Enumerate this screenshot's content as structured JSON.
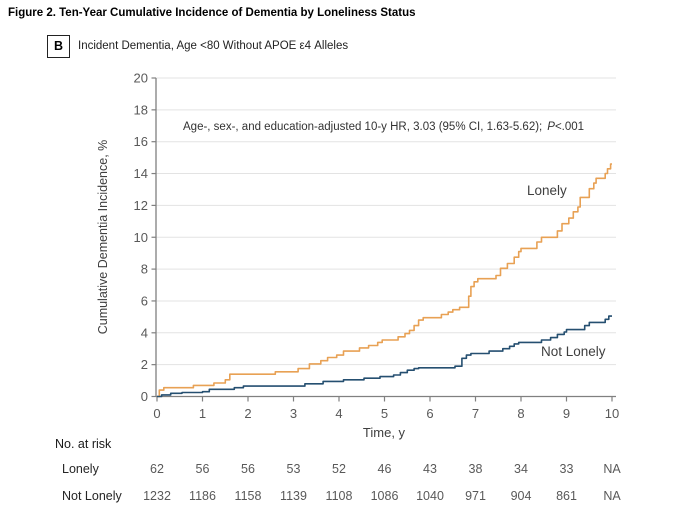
{
  "figure": {
    "title": "Figure 2. Ten-Year Cumulative Incidence of Dementia by Loneliness Status",
    "panel": {
      "letter": "B",
      "label": "Incident Dementia, Age <80 Without APOE ε4 Alleles"
    }
  },
  "chart_data": {
    "type": "line",
    "subtype": "step-cumulative-incidence",
    "xlabel": "Time, y",
    "ylabel": "Cumulative Dementia Incidence, %",
    "xlim": [
      0,
      10
    ],
    "ylim": [
      0,
      20
    ],
    "x_ticks": [
      0,
      1,
      2,
      3,
      4,
      5,
      6,
      7,
      8,
      9,
      10
    ],
    "y_ticks": [
      0,
      2,
      4,
      6,
      8,
      10,
      12,
      14,
      16,
      18,
      20
    ],
    "grid": "horizontal",
    "legend_position": "inline-labels",
    "annotation": {
      "prefix": "Age-, sex-, and education-adjusted 10-y HR, 3.03 (95% CI, 1.63-5.62);",
      "p_symbol": "P",
      "p_value": "<.001"
    },
    "series": [
      {
        "name": "Lonely",
        "color": "#E8A154",
        "points": [
          [
            0,
            0
          ],
          [
            0.05,
            0.4
          ],
          [
            0.15,
            0.55
          ],
          [
            0.8,
            0.7
          ],
          [
            1.25,
            0.85
          ],
          [
            1.5,
            1.05
          ],
          [
            1.6,
            1.4
          ],
          [
            2.6,
            1.55
          ],
          [
            3.1,
            1.75
          ],
          [
            3.35,
            2.05
          ],
          [
            3.6,
            2.25
          ],
          [
            3.75,
            2.45
          ],
          [
            3.95,
            2.6
          ],
          [
            4.1,
            2.85
          ],
          [
            4.45,
            3.05
          ],
          [
            4.65,
            3.2
          ],
          [
            4.85,
            3.4
          ],
          [
            4.95,
            3.55
          ],
          [
            5.3,
            3.75
          ],
          [
            5.45,
            3.95
          ],
          [
            5.55,
            4.15
          ],
          [
            5.65,
            4.45
          ],
          [
            5.75,
            4.8
          ],
          [
            5.85,
            4.95
          ],
          [
            6.25,
            5.15
          ],
          [
            6.4,
            5.3
          ],
          [
            6.5,
            5.45
          ],
          [
            6.65,
            5.6
          ],
          [
            6.85,
            6.3
          ],
          [
            6.9,
            6.9
          ],
          [
            6.97,
            7.2
          ],
          [
            7.05,
            7.4
          ],
          [
            7.45,
            7.6
          ],
          [
            7.55,
            8.05
          ],
          [
            7.7,
            8.35
          ],
          [
            7.85,
            8.75
          ],
          [
            7.95,
            9.1
          ],
          [
            8.0,
            9.3
          ],
          [
            8.35,
            9.7
          ],
          [
            8.45,
            10.0
          ],
          [
            8.8,
            10.4
          ],
          [
            8.9,
            10.85
          ],
          [
            9.05,
            11.2
          ],
          [
            9.15,
            11.6
          ],
          [
            9.25,
            11.9
          ],
          [
            9.3,
            12.5
          ],
          [
            9.5,
            13.05
          ],
          [
            9.6,
            13.4
          ],
          [
            9.65,
            13.7
          ],
          [
            9.85,
            14.0
          ],
          [
            9.9,
            14.3
          ],
          [
            9.97,
            14.6
          ]
        ]
      },
      {
        "name": "Not Lonely",
        "color": "#254F70",
        "points": [
          [
            0,
            0
          ],
          [
            0.1,
            0.1
          ],
          [
            0.3,
            0.2
          ],
          [
            0.55,
            0.25
          ],
          [
            1.0,
            0.3
          ],
          [
            1.15,
            0.45
          ],
          [
            1.7,
            0.55
          ],
          [
            1.9,
            0.65
          ],
          [
            3.25,
            0.8
          ],
          [
            3.65,
            0.95
          ],
          [
            4.1,
            1.05
          ],
          [
            4.55,
            1.15
          ],
          [
            4.9,
            1.25
          ],
          [
            5.2,
            1.35
          ],
          [
            5.35,
            1.5
          ],
          [
            5.5,
            1.65
          ],
          [
            5.65,
            1.75
          ],
          [
            5.75,
            1.8
          ],
          [
            6.55,
            1.9
          ],
          [
            6.7,
            2.4
          ],
          [
            6.8,
            2.6
          ],
          [
            6.9,
            2.7
          ],
          [
            7.3,
            2.85
          ],
          [
            7.6,
            3.0
          ],
          [
            7.75,
            3.15
          ],
          [
            7.85,
            3.3
          ],
          [
            7.95,
            3.4
          ],
          [
            8.45,
            3.55
          ],
          [
            8.65,
            3.7
          ],
          [
            8.8,
            3.9
          ],
          [
            8.95,
            4.05
          ],
          [
            9.0,
            4.2
          ],
          [
            9.4,
            4.45
          ],
          [
            9.5,
            4.65
          ],
          [
            9.85,
            4.85
          ],
          [
            9.93,
            5.05
          ]
        ]
      }
    ],
    "risk_table": {
      "header": "No. at risk",
      "times": [
        0,
        1,
        2,
        3,
        4,
        5,
        6,
        7,
        8,
        9,
        10
      ],
      "rows": [
        {
          "label": "Lonely",
          "values": [
            "62",
            "56",
            "56",
            "53",
            "52",
            "46",
            "43",
            "38",
            "34",
            "33",
            "NA"
          ]
        },
        {
          "label": "Not Lonely",
          "values": [
            "1232",
            "1186",
            "1158",
            "1139",
            "1108",
            "1086",
            "1040",
            "971",
            "904",
            "861",
            "NA"
          ]
        }
      ]
    }
  },
  "colors": {
    "lonely_line": "#E8A154",
    "not_lonely_line": "#254F70",
    "axis": "#808080",
    "gridline": "#E3E3E3",
    "tick_label": "#595959",
    "axis_title": "#3F3F3F",
    "risk_value": "#595959",
    "text_dark": "#262626"
  }
}
